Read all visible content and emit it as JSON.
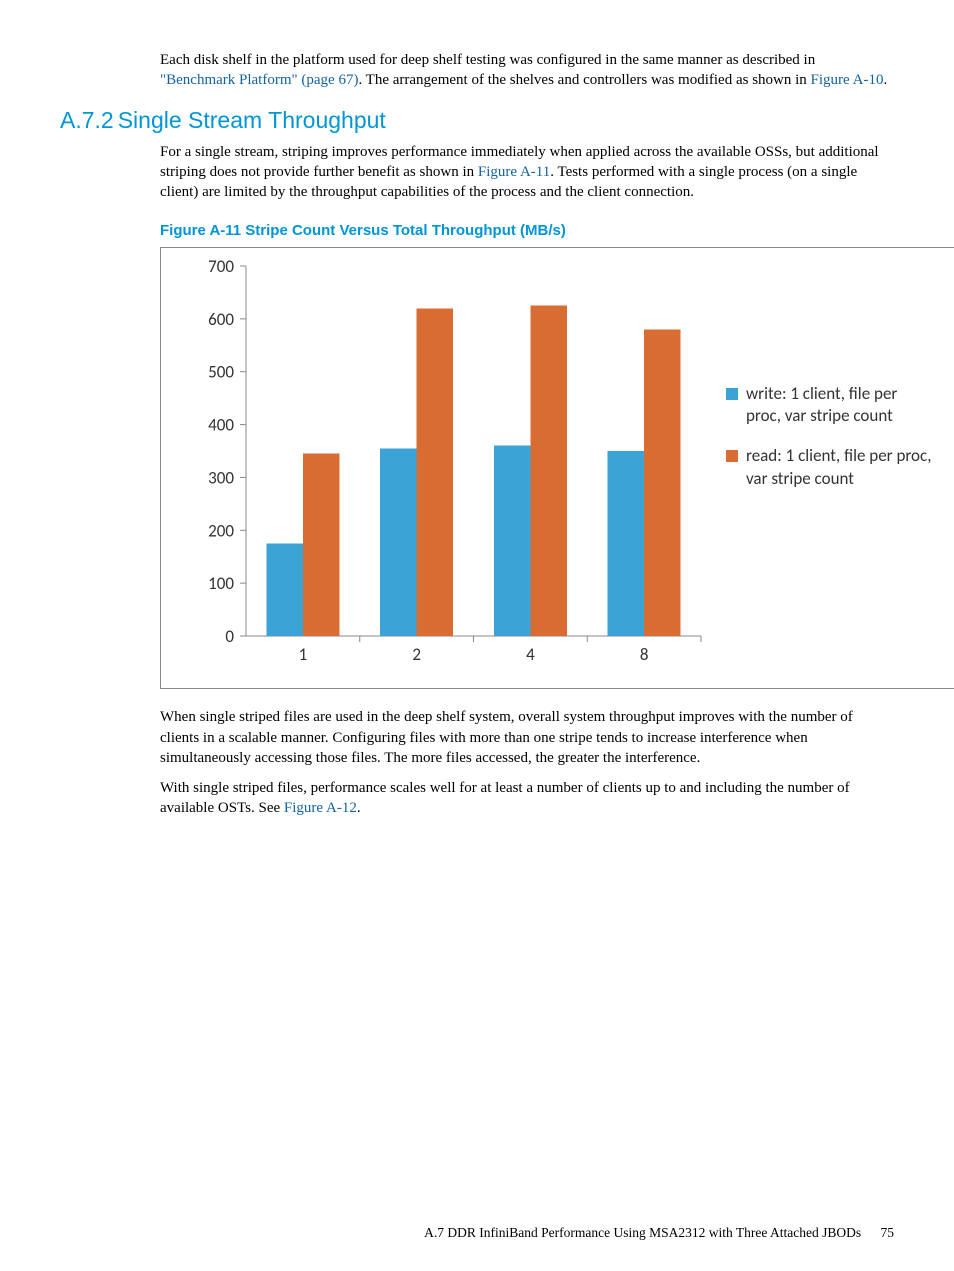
{
  "para1": {
    "pre": "Each disk shelf in the platform used for deep shelf testing was configured in the same manner as described in ",
    "link1": "\"Benchmark Platform\" (page 67)",
    "mid": ". The arrangement of the shelves and controllers was modified as shown in ",
    "link2": "Figure A-10",
    "post": "."
  },
  "section": {
    "num": "A.7.2",
    "title": "Single Stream Throughput"
  },
  "para2": {
    "pre": "For a single stream, striping improves performance immediately when applied across the available OSSs, but additional striping does not provide further benefit as shown in ",
    "link": "Figure A-11",
    "post": ". Tests performed with a single process (on a single client) are limited by the throughput capabilities of the process and the client connection."
  },
  "figure": {
    "label": "Figure  A-11  Stripe Count Versus Total Throughput (MB/s)"
  },
  "chart": {
    "type": "bar",
    "categories": [
      "1",
      "2",
      "4",
      "8"
    ],
    "series": [
      {
        "name": "write",
        "values": [
          175,
          355,
          360,
          350
        ],
        "color": "#3ba3d6"
      },
      {
        "name": "read",
        "values": [
          345,
          620,
          625,
          580
        ],
        "color": "#d96c33"
      }
    ],
    "ylim": [
      0,
      700
    ],
    "ytick_step": 100,
    "bar_width": 0.32,
    "background_color": "#ffffff",
    "axis_color": "#888888",
    "tick_font_size": 17,
    "legend": [
      "write: 1 client, file per proc, var stripe count",
      "read: 1 client, file per proc, var stripe count"
    ]
  },
  "para3": "When single striped files are used in the deep shelf system, overall system throughput improves with the number of clients in a scalable manner. Configuring files with more than one stripe tends to increase interference when simultaneously accessing those files. The more files accessed, the greater the interference.",
  "para4": {
    "pre": "With single striped files, performance scales well for at least a number of clients up to and including the number of available OSTs. See ",
    "link": "Figure A-12",
    "post": "."
  },
  "footer": {
    "text": "A.7 DDR InfiniBand Performance Using MSA2312 with Three Attached JBODs",
    "page": "75"
  }
}
